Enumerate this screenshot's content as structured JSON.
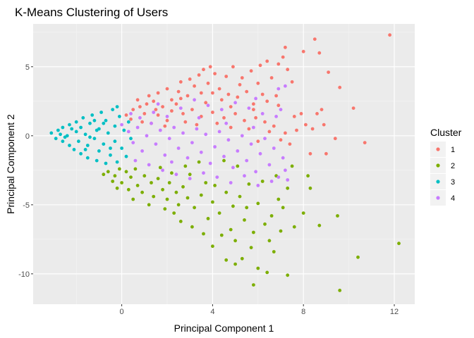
{
  "chart_data": {
    "type": "scatter",
    "title": "K-Means Clustering of Users",
    "xlabel": "Principal Component 1",
    "ylabel": "Principal Component 2",
    "xlim": [
      -3.9,
      12.9
    ],
    "ylim": [
      -12.2,
      8.1
    ],
    "x_ticks": [
      0,
      4,
      8,
      12
    ],
    "y_ticks": [
      5,
      0,
      -5,
      -10
    ],
    "x_minor_ticks": [
      -2,
      2,
      6,
      10
    ],
    "y_minor_ticks": [
      7.5,
      2.5,
      -2.5,
      -7.5
    ],
    "grid": true,
    "legend": {
      "title": "Cluster",
      "position": "right"
    },
    "series": [
      {
        "name": "1",
        "color": "#F8766D",
        "points": [
          [
            11.8,
            7.3
          ],
          [
            8.5,
            7.0
          ],
          [
            7.2,
            6.4
          ],
          [
            8.0,
            6.1
          ],
          [
            8.7,
            6.0
          ],
          [
            9.1,
            4.6
          ],
          [
            9.6,
            3.5
          ],
          [
            10.2,
            2.0
          ],
          [
            8.8,
            1.9
          ],
          [
            8.6,
            1.6
          ],
          [
            7.9,
            1.6
          ],
          [
            7.6,
            1.4
          ],
          [
            8.1,
            0.8
          ],
          [
            8.4,
            0.5
          ],
          [
            8.9,
            0.8
          ],
          [
            10.7,
            -0.5
          ],
          [
            9.4,
            -0.2
          ],
          [
            7.7,
            0.4
          ],
          [
            8.3,
            -1.3
          ],
          [
            9.0,
            -1.3
          ],
          [
            7.5,
            3.9
          ],
          [
            6.1,
            5.1
          ],
          [
            5.7,
            4.7
          ],
          [
            4.9,
            5.0
          ],
          [
            4.6,
            4.3
          ],
          [
            3.9,
            5.0
          ],
          [
            3.4,
            4.4
          ],
          [
            3.6,
            4.8
          ],
          [
            2.6,
            3.9
          ],
          [
            3.2,
            3.6
          ],
          [
            6.6,
            4.2
          ],
          [
            6.4,
            5.4
          ],
          [
            6.9,
            5.2
          ],
          [
            7.1,
            5.7
          ],
          [
            7.3,
            4.8
          ],
          [
            6.0,
            3.8
          ],
          [
            5.2,
            3.7
          ],
          [
            5.5,
            3.2
          ],
          [
            6.2,
            3.0
          ],
          [
            6.8,
            2.9
          ],
          [
            6.9,
            2.2
          ],
          [
            5.8,
            2.3
          ],
          [
            5.1,
            2.8
          ],
          [
            4.8,
            2.1
          ],
          [
            4.4,
            2.6
          ],
          [
            4.0,
            3.1
          ],
          [
            3.7,
            2.4
          ],
          [
            2.9,
            2.9
          ],
          [
            2.5,
            3.2
          ],
          [
            2.2,
            2.6
          ],
          [
            1.8,
            2.1
          ],
          [
            1.4,
            2.5
          ],
          [
            1.1,
            2.3
          ],
          [
            0.8,
            2.1
          ],
          [
            0.5,
            1.9
          ],
          [
            1.0,
            1.6
          ],
          [
            1.6,
            1.5
          ],
          [
            2.2,
            1.8
          ],
          [
            2.7,
            1.6
          ],
          [
            3.1,
            1.9
          ],
          [
            3.5,
            1.4
          ],
          [
            4.0,
            1.7
          ],
          [
            4.5,
            1.3
          ],
          [
            5.0,
            1.6
          ],
          [
            5.4,
            1.1
          ],
          [
            5.9,
            1.3
          ],
          [
            6.3,
            1.0
          ],
          [
            6.7,
            0.7
          ],
          [
            7.2,
            0.2
          ],
          [
            7.4,
            -0.6
          ],
          [
            7.0,
            -0.3
          ],
          [
            6.5,
            0.3
          ],
          [
            6.0,
            -0.4
          ],
          [
            5.6,
            0.5
          ],
          [
            2.0,
            1.1
          ],
          [
            2.8,
            1.0
          ],
          [
            3.3,
            0.8
          ],
          [
            4.2,
            0.9
          ],
          [
            4.8,
            0.6
          ],
          [
            0.2,
            1.5
          ],
          [
            0.4,
            1.2
          ],
          [
            0.9,
            1.0
          ],
          [
            1.3,
            0.9
          ],
          [
            1.9,
            0.7
          ],
          [
            3.8,
            3.8
          ],
          [
            4.3,
            3.4
          ],
          [
            4.7,
            3.0
          ],
          [
            5.3,
            4.2
          ],
          [
            2.0,
            3.4
          ],
          [
            1.6,
            3.1
          ],
          [
            1.2,
            2.9
          ],
          [
            3.0,
            4.1
          ],
          [
            4.1,
            4.5
          ],
          [
            3.5,
            3.1
          ],
          [
            2.4,
            2.3
          ],
          [
            5.8,
            1.9
          ],
          [
            6.4,
            2.5
          ],
          [
            0.7,
            2.6
          ],
          [
            1.5,
            1.9
          ],
          [
            2.6,
            2.7
          ]
        ]
      },
      {
        "name": "2",
        "color": "#7CAE00",
        "points": [
          [
            -0.6,
            -2.6
          ],
          [
            -0.3,
            -2.9
          ],
          [
            -0.1,
            -2.4
          ],
          [
            0.2,
            -2.6
          ],
          [
            0.4,
            -3.0
          ],
          [
            0.6,
            -2.4
          ],
          [
            -0.4,
            -3.3
          ],
          [
            -0.8,
            -2.8
          ],
          [
            0.0,
            -3.4
          ],
          [
            0.3,
            -3.9
          ],
          [
            0.7,
            -3.6
          ],
          [
            1.0,
            -2.9
          ],
          [
            1.3,
            -3.4
          ],
          [
            0.9,
            -4.1
          ],
          [
            1.6,
            -3.1
          ],
          [
            1.8,
            -3.9
          ],
          [
            2.1,
            -3.4
          ],
          [
            1.4,
            -4.4
          ],
          [
            2.0,
            -4.6
          ],
          [
            2.4,
            -4.1
          ],
          [
            2.7,
            -3.7
          ],
          [
            2.9,
            -4.5
          ],
          [
            2.5,
            -5.0
          ],
          [
            3.2,
            -5.2
          ],
          [
            3.5,
            -4.3
          ],
          [
            3.0,
            -2.8
          ],
          [
            3.7,
            -3.4
          ],
          [
            4.0,
            -4.8
          ],
          [
            4.3,
            -5.6
          ],
          [
            3.8,
            -6.0
          ],
          [
            4.6,
            -4.1
          ],
          [
            4.9,
            -5.1
          ],
          [
            5.2,
            -4.4
          ],
          [
            5.6,
            -3.5
          ],
          [
            6.0,
            -4.9
          ],
          [
            5.4,
            -6.1
          ],
          [
            4.8,
            -6.8
          ],
          [
            5.0,
            -7.6
          ],
          [
            4.4,
            -7.2
          ],
          [
            5.8,
            -7.0
          ],
          [
            6.3,
            -6.4
          ],
          [
            6.6,
            -5.8
          ],
          [
            6.9,
            -4.6
          ],
          [
            6.2,
            -3.3
          ],
          [
            6.8,
            -2.9
          ],
          [
            7.3,
            -3.8
          ],
          [
            7.0,
            -6.9
          ],
          [
            6.5,
            -7.6
          ],
          [
            5.7,
            -8.1
          ],
          [
            5.3,
            -8.9
          ],
          [
            5.0,
            -9.3
          ],
          [
            6.0,
            -9.6
          ],
          [
            6.4,
            -9.9
          ],
          [
            7.3,
            -10.1
          ],
          [
            5.8,
            -10.8
          ],
          [
            8.2,
            -2.9
          ],
          [
            8.3,
            -3.8
          ],
          [
            8.0,
            -5.6
          ],
          [
            8.7,
            -6.5
          ],
          [
            9.5,
            -5.8
          ],
          [
            9.6,
            -11.2
          ],
          [
            10.4,
            -8.8
          ],
          [
            12.2,
            -7.8
          ],
          [
            4.5,
            -1.8
          ],
          [
            5.1,
            -2.2
          ],
          [
            3.4,
            -1.9
          ],
          [
            2.8,
            -2.2
          ],
          [
            2.2,
            -2.7
          ],
          [
            1.7,
            -2.3
          ],
          [
            7.5,
            -2.2
          ],
          [
            7.1,
            -5.2
          ],
          [
            4.1,
            -3.6
          ],
          [
            3.1,
            -6.6
          ],
          [
            3.6,
            -7.1
          ],
          [
            2.3,
            -5.6
          ],
          [
            1.9,
            -5.3
          ],
          [
            1.2,
            -5.0
          ],
          [
            0.5,
            -4.6
          ],
          [
            -0.2,
            -3.8
          ],
          [
            6.7,
            -8.4
          ],
          [
            7.6,
            -6.6
          ],
          [
            4.0,
            -8.0
          ],
          [
            4.6,
            -9.0
          ],
          [
            2.6,
            -6.2
          ],
          [
            5.5,
            -5.2
          ]
        ]
      },
      {
        "name": "3",
        "color": "#00BFC4",
        "points": [
          [
            -3.1,
            0.2
          ],
          [
            -2.9,
            -0.2
          ],
          [
            -2.8,
            0.4
          ],
          [
            -2.6,
            -0.4
          ],
          [
            -2.6,
            0.6
          ],
          [
            -2.4,
            0.0
          ],
          [
            -2.3,
            -0.7
          ],
          [
            -2.3,
            0.8
          ],
          [
            -2.1,
            -1.0
          ],
          [
            -2.0,
            0.3
          ],
          [
            -2.0,
            1.0
          ],
          [
            -1.9,
            -0.4
          ],
          [
            -1.8,
            -1.3
          ],
          [
            -1.7,
            1.3
          ],
          [
            -1.6,
            0.1
          ],
          [
            -1.5,
            -1.6
          ],
          [
            -1.5,
            -0.7
          ],
          [
            -1.4,
            0.9
          ],
          [
            -1.3,
            1.5
          ],
          [
            -1.2,
            -0.2
          ],
          [
            -1.1,
            -1.8
          ],
          [
            -1.0,
            -1.1
          ],
          [
            -1.0,
            0.5
          ],
          [
            -0.9,
            1.7
          ],
          [
            -0.8,
            -0.6
          ],
          [
            -0.7,
            1.1
          ],
          [
            -0.7,
            -2.0
          ],
          [
            -0.6,
            0.2
          ],
          [
            -0.5,
            -1.4
          ],
          [
            -0.4,
            1.9
          ],
          [
            -0.3,
            -0.4
          ],
          [
            -0.3,
            0.7
          ],
          [
            -0.2,
            -1.9
          ],
          [
            -0.1,
            1.4
          ],
          [
            0.0,
            -0.9
          ],
          [
            0.1,
            0.4
          ],
          [
            0.2,
            -1.5
          ],
          [
            0.3,
            1.0
          ],
          [
            -0.2,
            2.1
          ],
          [
            0.4,
            -0.2
          ],
          [
            -2.2,
            0.5
          ],
          [
            -1.8,
            0.6
          ],
          [
            -1.4,
            -0.1
          ],
          [
            -1.1,
            0.4
          ],
          [
            -0.8,
            0.9
          ],
          [
            -0.5,
            -0.9
          ],
          [
            -2.7,
            0.1
          ],
          [
            -2.5,
            -0.1
          ],
          [
            -1.6,
            -1.0
          ],
          [
            -1.2,
            1.1
          ]
        ]
      },
      {
        "name": "4",
        "color": "#C77CFF",
        "points": [
          [
            0.0,
            0.8
          ],
          [
            0.3,
            0.3
          ],
          [
            0.5,
            -0.5
          ],
          [
            0.7,
            0.6
          ],
          [
            0.9,
            -1.1
          ],
          [
            1.1,
            0.0
          ],
          [
            1.3,
            0.9
          ],
          [
            1.5,
            -0.6
          ],
          [
            1.7,
            0.4
          ],
          [
            1.9,
            -1.4
          ],
          [
            2.1,
            -0.2
          ],
          [
            2.3,
            0.6
          ],
          [
            2.5,
            -0.9
          ],
          [
            2.7,
            0.2
          ],
          [
            2.9,
            -1.6
          ],
          [
            3.1,
            -0.5
          ],
          [
            3.3,
            0.5
          ],
          [
            3.5,
            -1.2
          ],
          [
            3.7,
            0.1
          ],
          [
            3.9,
            -2.0
          ],
          [
            4.1,
            -0.8
          ],
          [
            4.3,
            0.3
          ],
          [
            4.5,
            -1.5
          ],
          [
            4.7,
            -0.3
          ],
          [
            4.9,
            -2.3
          ],
          [
            5.1,
            -1.1
          ],
          [
            5.3,
            0.0
          ],
          [
            5.5,
            -1.8
          ],
          [
            5.7,
            -0.6
          ],
          [
            5.9,
            -2.6
          ],
          [
            6.1,
            -1.3
          ],
          [
            6.3,
            -0.2
          ],
          [
            6.5,
            -2.1
          ],
          [
            6.7,
            -0.9
          ],
          [
            6.9,
            -3.0
          ],
          [
            7.1,
            -1.6
          ],
          [
            7.2,
            -2.5
          ],
          [
            7.3,
            -3.2
          ],
          [
            5.0,
            2.4
          ],
          [
            5.6,
            2.0
          ],
          [
            6.2,
            1.6
          ],
          [
            6.8,
            1.4
          ],
          [
            7.0,
            1.9
          ],
          [
            7.2,
            3.6
          ],
          [
            6.9,
            3.4
          ],
          [
            5.9,
            2.7
          ],
          [
            4.4,
            1.9
          ],
          [
            3.8,
            2.2
          ],
          [
            3.2,
            2.6
          ],
          [
            2.6,
            2.0
          ],
          [
            2.0,
            1.4
          ],
          [
            1.4,
            1.7
          ],
          [
            0.8,
            1.3
          ],
          [
            0.4,
            1.6
          ],
          [
            0.6,
            -1.8
          ],
          [
            1.2,
            -2.1
          ],
          [
            1.8,
            -2.5
          ],
          [
            2.4,
            -2.8
          ],
          [
            3.0,
            -3.1
          ],
          [
            3.6,
            -2.7
          ],
          [
            4.2,
            -3.0
          ],
          [
            4.8,
            -3.4
          ],
          [
            5.4,
            -2.9
          ],
          [
            6.0,
            -3.6
          ],
          [
            6.6,
            -3.3
          ],
          [
            3.4,
            1.3
          ],
          [
            4.6,
            0.9
          ],
          [
            5.8,
            0.6
          ],
          [
            2.2,
            -1.9
          ],
          [
            1.6,
            2.3
          ]
        ]
      }
    ]
  }
}
